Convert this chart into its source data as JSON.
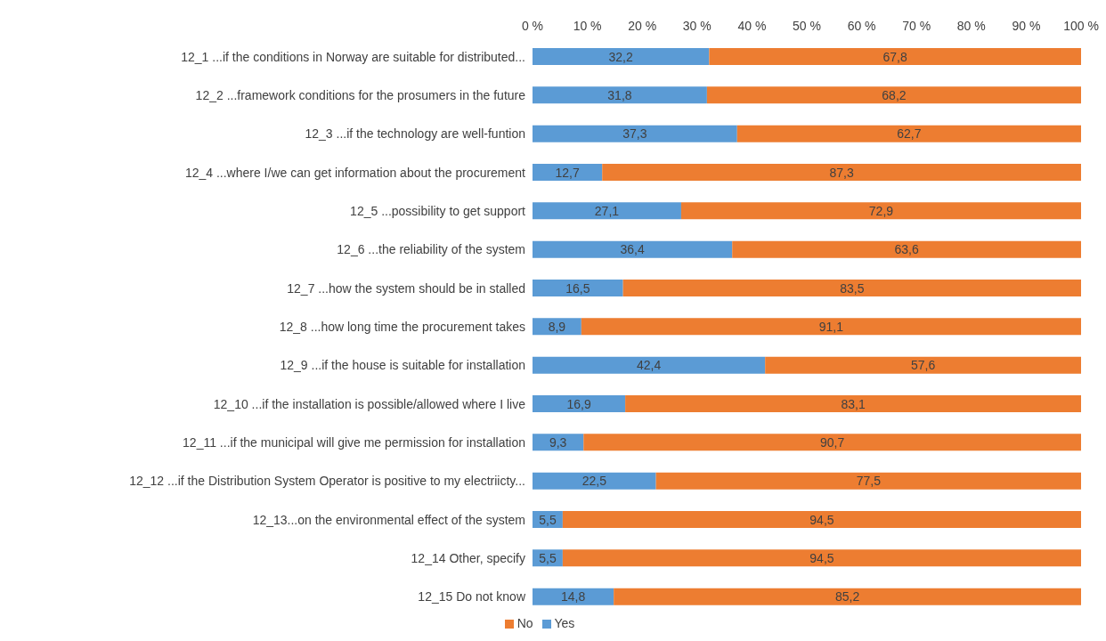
{
  "chart_data": {
    "type": "bar",
    "orientation": "horizontal",
    "stacked": true,
    "legend": "bottom",
    "grid": false,
    "categories": [
      "12_1 ...if the conditions in Norway are suitable for distributed...",
      "12_2 ...framework conditions for the prosumers in the future",
      "12_3 ...if the technology are well-funtion",
      "12_4 ...where I/we can get information about the procurement",
      "12_5 ...possibility to get support",
      "12_6 ...the reliability of the system",
      "12_7 ...how the system should be in stalled",
      "12_8 ...how long time the procurement takes",
      "12_9 ...if the house is suitable for installation",
      "12_10 ...if the installation is possible/allowed where I live",
      "12_11 ...if the municipal will give me permission for installation",
      "12_12 ...if the Distribution System Operator is positive to my electriicty...",
      "12_13...on the environmental effect of the system",
      "12_14 Other, specify",
      "12_15 Do not know"
    ],
    "xlim": [
      0,
      100
    ],
    "xticks": [
      {
        "value": 0,
        "label": "0 %"
      },
      {
        "value": 10,
        "label": "10 %"
      },
      {
        "value": 20,
        "label": "20 %"
      },
      {
        "value": 30,
        "label": "30 %"
      },
      {
        "value": 40,
        "label": "40 %"
      },
      {
        "value": 50,
        "label": "50 %"
      },
      {
        "value": 60,
        "label": "60 %"
      },
      {
        "value": 70,
        "label": "70 %"
      },
      {
        "value": 80,
        "label": "80 %"
      },
      {
        "value": 90,
        "label": "90 %"
      },
      {
        "value": 100,
        "label": "100 %"
      }
    ],
    "series": [
      {
        "name": "Yes",
        "color": "#5b9bd5",
        "values": [
          32.2,
          31.8,
          37.3,
          12.7,
          27.1,
          36.4,
          16.5,
          8.9,
          42.4,
          16.9,
          9.3,
          22.5,
          5.5,
          5.5,
          14.8
        ],
        "value_labels": [
          "32,2",
          "31,8",
          "37,3",
          "12,7",
          "27,1",
          "36,4",
          "16,5",
          "8,9",
          "42,4",
          "16,9",
          "9,3",
          "22,5",
          "5,5",
          "5,5",
          "14,8"
        ]
      },
      {
        "name": "No",
        "color": "#ed7d31",
        "values": [
          67.8,
          68.2,
          62.7,
          87.3,
          72.9,
          63.6,
          83.5,
          91.1,
          57.6,
          83.1,
          90.7,
          77.5,
          94.5,
          94.5,
          85.2
        ],
        "value_labels": [
          "67,8",
          "68,2",
          "62,7",
          "87,3",
          "72,9",
          "63,6",
          "83,5",
          "91,1",
          "57,6",
          "83,1",
          "90,7",
          "77,5",
          "94,5",
          "94,5",
          "85,2"
        ]
      }
    ]
  }
}
